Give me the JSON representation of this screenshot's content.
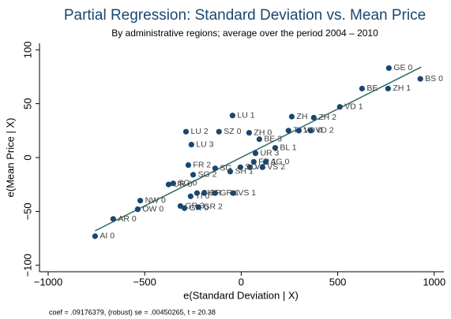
{
  "chart_data": {
    "type": "scatter",
    "title": "Partial Regression: Standard Deviation vs. Mean Price",
    "subtitle": "By administrative regions; average over the period 2004 – 2010",
    "xlabel": "e(Standard Deviation | X)",
    "ylabel": "e(Mean Price | X)",
    "note": "coef = .09176379, (robust) se = .00450265, t = 20.38",
    "xlim": [
      -1045,
      1050
    ],
    "ylim": [
      -106,
      106
    ],
    "xticks": [
      {
        "value": -1000,
        "label": "−1000"
      },
      {
        "value": -500,
        "label": "−500"
      },
      0,
      500,
      1000
    ],
    "yticks": [
      {
        "value": -100,
        "label": "−100"
      },
      {
        "value": -50,
        "label": "−50"
      },
      0,
      50,
      100
    ],
    "color": "#1a476f",
    "points": {
      "x": [
        765,
        928,
        626,
        761,
        511,
        -45,
        262,
        376,
        -286,
        -115,
        41,
        245,
        299,
        360,
        94,
        -258,
        176,
        74,
        65,
        127,
        -274,
        -4,
        45,
        110,
        -135,
        -249,
        -57,
        -352,
        -376,
        -229,
        -192,
        -135,
        -41,
        -523,
        -262,
        -536,
        -315,
        -294,
        -221,
        -663,
        -757
      ],
      "y": [
        83,
        73,
        64,
        64,
        47,
        39,
        38,
        37,
        24,
        24,
        23,
        25,
        25,
        25,
        17,
        12,
        9,
        4,
        -4,
        -4,
        -7,
        -9,
        -9,
        -9,
        -10,
        -16,
        -13,
        -24,
        -25,
        -33,
        -33,
        -33,
        -33,
        -40,
        -36,
        -48,
        -45,
        -47,
        -46,
        -57,
        -73
      ],
      "labels": [
        "GE 0",
        "BS 0",
        "BE",
        "ZH 1",
        "VD 1",
        "LU 1",
        "ZH",
        "ZH 2",
        "LU 2",
        "SZ 0",
        "ZH 0",
        "TI 1",
        "VD 0",
        "VD 2",
        "BE 3",
        "LU 3",
        "BL 1",
        "UR 3",
        "FR 1",
        "AG 0",
        "FR 2",
        "SO",
        "VS",
        "VS 2",
        "SG",
        "SG 2",
        "SH 1",
        "SG 0",
        "UR 0",
        "SH",
        "GR",
        "GR 1",
        "VS 1",
        "NW 0",
        "TI 0",
        "OW 0",
        "GR 3",
        "GR 0",
        "GR 2",
        "AR 0",
        "AI 0"
      ]
    },
    "fit": {
      "x": [
        -757,
        933
      ],
      "y": [
        -68,
        84
      ],
      "color": "#2d6d66"
    }
  }
}
